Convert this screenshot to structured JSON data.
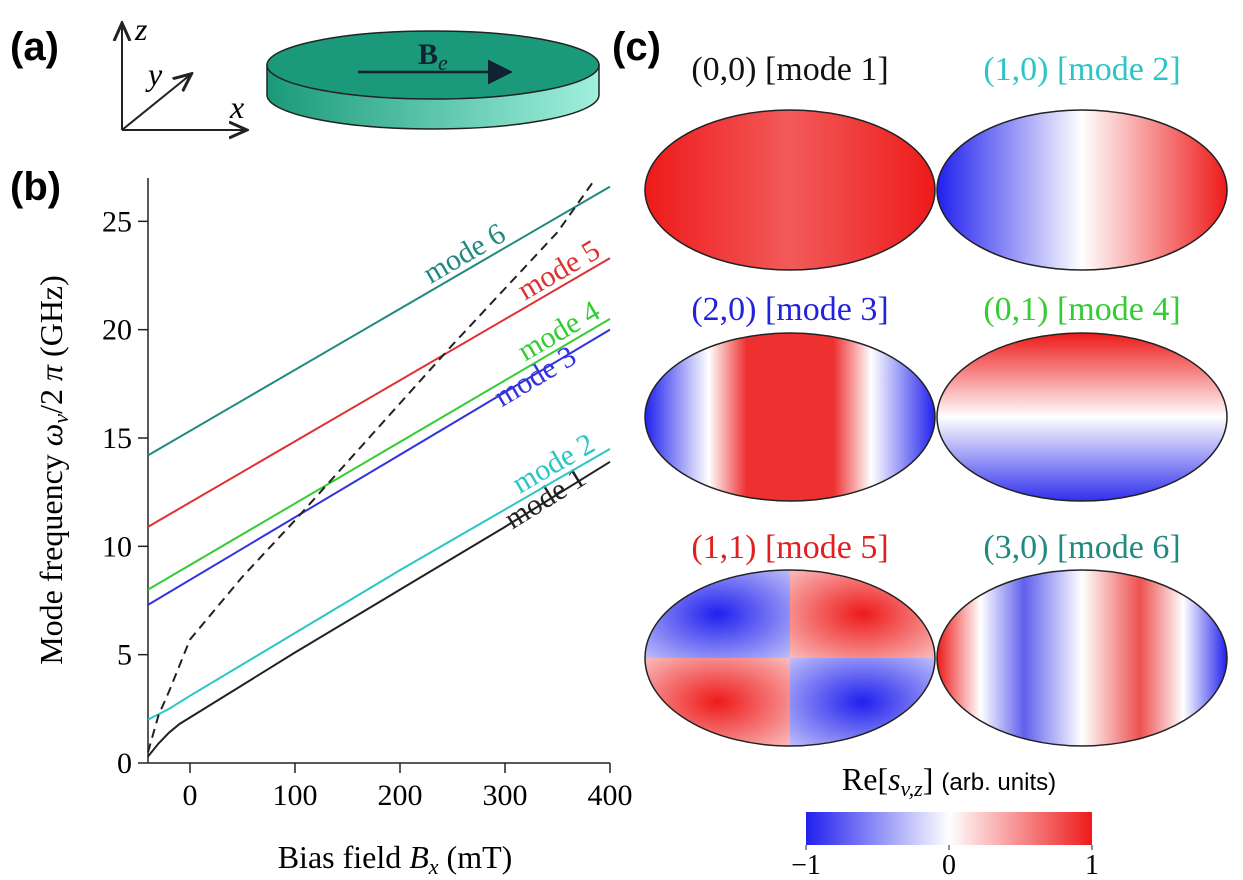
{
  "panel_a": {
    "label": "(a)",
    "axis_z": "z",
    "axis_y": "y",
    "axis_x": "x",
    "field_label": "B",
    "field_sub": "e"
  },
  "chart_data": {
    "type": "line",
    "panel_label": "(b)",
    "ylabel_parts": [
      "Mode frequency ",
      "ω",
      "v",
      "/2 ",
      "π",
      " (GHz)"
    ],
    "xlabel_parts": [
      "Bias field ",
      "B",
      "x",
      " (mT)"
    ],
    "xlim": [
      -40,
      400
    ],
    "xticks": [
      0,
      100,
      200,
      300,
      400
    ],
    "ylim": [
      0,
      27
    ],
    "yticks": [
      0,
      5,
      10,
      15,
      20,
      25
    ],
    "series": [
      {
        "name": "mode 1",
        "color": "#222222",
        "x": [
          -40,
          -30,
          -20,
          -10,
          0,
          100,
          200,
          300,
          400
        ],
        "values": [
          0.3,
          0.9,
          1.4,
          1.8,
          2.1,
          5.1,
          8.0,
          10.9,
          13.9
        ]
      },
      {
        "name": "mode 2",
        "color": "#2cc5c5",
        "x": [
          -40,
          -20,
          0,
          100,
          200,
          300,
          400
        ],
        "values": [
          2.0,
          2.5,
          3.1,
          6.0,
          8.9,
          11.7,
          14.5
        ]
      },
      {
        "name": "mode 3",
        "color": "#3333dd",
        "x": [
          -40,
          400
        ],
        "values": [
          7.3,
          20.0
        ]
      },
      {
        "name": "mode 4",
        "color": "#33cc33",
        "x": [
          -40,
          400
        ],
        "values": [
          8.0,
          20.5
        ]
      },
      {
        "name": "mode 5",
        "color": "#e03030",
        "x": [
          -40,
          400
        ],
        "values": [
          10.9,
          23.3
        ]
      },
      {
        "name": "mode 6",
        "color": "#208a80",
        "x": [
          -40,
          400
        ],
        "values": [
          14.2,
          26.6
        ]
      },
      {
        "color": "#222222",
        "dashed": true,
        "x": [
          -40,
          -30,
          -20,
          -10,
          0,
          50,
          100,
          150,
          200,
          250,
          300,
          350,
          385
        ],
        "values": [
          0.5,
          2.2,
          3.3,
          4.5,
          5.7,
          8.6,
          11.2,
          13.9,
          16.6,
          19.3,
          21.9,
          24.5,
          26.9
        ]
      }
    ]
  },
  "panel_c": {
    "label": "(c)",
    "modes": [
      {
        "title": "(0,0) [mode 1]",
        "color": "#111111"
      },
      {
        "title": "(1,0) [mode 2]",
        "color": "#2cc5c5"
      },
      {
        "title": "(2,0) [mode 3]",
        "color": "#2222dd"
      },
      {
        "title": "(0,1) [mode 4]",
        "color": "#33cc33"
      },
      {
        "title": "(1,1) [mode 5]",
        "color": "#e02020"
      },
      {
        "title": "(3,0) [mode 6]",
        "color": "#208a80"
      }
    ],
    "colorbar": {
      "label_parts": [
        "Re[",
        "s",
        "v,z",
        "]"
      ],
      "units": "(arb. units)",
      "lim": [
        -1,
        1
      ],
      "ticks": [
        {
          "value": -1,
          "label": "−1"
        },
        0,
        1
      ]
    }
  }
}
